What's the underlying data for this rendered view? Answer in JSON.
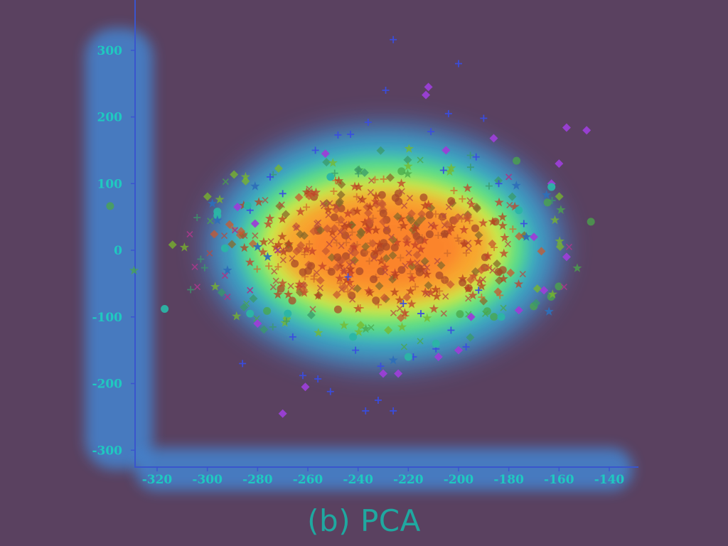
{
  "chart_data": {
    "type": "scatter",
    "title": "",
    "caption": "(b) PCA",
    "xlabel": "",
    "ylabel": "",
    "xlim": [
      -325,
      -135
    ],
    "ylim": [
      -320,
      330
    ],
    "x_ticks": [
      -320,
      -300,
      -280,
      -260,
      -240,
      -220,
      -200,
      -180,
      -160,
      -140
    ],
    "y_ticks": [
      -300,
      -200,
      -100,
      0,
      100,
      200,
      300
    ],
    "grid": false,
    "overlay": "attention heatmap (jet colormap) over a dense central cluster",
    "series": [
      {
        "marker": "plus",
        "color": "#3a4de0",
        "x": [
          -226,
          -200,
          -229,
          -211,
          -204,
          -190,
          -248,
          -243,
          -257,
          -236,
          -193,
          -184,
          -286,
          -256,
          -262,
          -251,
          -237,
          -226,
          -232,
          -231,
          -218,
          -209,
          -203,
          -197,
          -266,
          -241,
          -215,
          -222,
          -192,
          -174,
          -270,
          -275,
          -283,
          -244,
          -206
        ],
        "y": [
          316,
          280,
          240,
          178,
          205,
          198,
          173,
          174,
          150,
          192,
          140,
          100,
          -170,
          -193,
          -188,
          -212,
          -241,
          -241,
          -225,
          -174,
          -160,
          -148,
          -120,
          -145,
          -130,
          -150,
          -95,
          -80,
          -60,
          40,
          85,
          110,
          60,
          -40,
          120
        ]
      },
      {
        "marker": "diamond",
        "color": "#9b3fd6",
        "x": [
          -212,
          -213,
          -157,
          -149,
          -160,
          -163,
          -157,
          -166,
          -280,
          -270,
          -261,
          -230,
          -224,
          -208,
          -200,
          -195,
          -176,
          -288,
          -281,
          -253,
          -186,
          -205,
          -170
        ],
        "y": [
          245,
          233,
          184,
          180,
          130,
          100,
          -10,
          -60,
          -110,
          -245,
          -205,
          -185,
          -185,
          -160,
          -150,
          -100,
          -90,
          65,
          40,
          145,
          168,
          150,
          20
        ]
      },
      {
        "marker": "cross",
        "color": "#a43a8a",
        "x": [
          -307,
          -305,
          -304,
          -292,
          -293,
          -289,
          -156,
          -158,
          -272,
          -283,
          -180
        ],
        "y": [
          24,
          -25,
          -55,
          -70,
          -38,
          30,
          5,
          -55,
          0,
          -60,
          110
        ]
      },
      {
        "marker": "circle",
        "color": "#2bb5a5",
        "x": [
          -296,
          -296,
          -293,
          -283,
          -317,
          -284,
          -163,
          -176,
          -183,
          -220,
          -209,
          -242,
          -268,
          -251
        ],
        "y": [
          58,
          52,
          3,
          -95,
          -88,
          67,
          95,
          60,
          -100,
          -160,
          -140,
          -130,
          -95,
          110
        ]
      },
      {
        "marker": "star",
        "color": "#2e6fb8",
        "x": [
          -298,
          -281,
          -292,
          -280,
          -165,
          -177,
          -164,
          -226,
          -296,
          -276,
          -173
        ],
        "y": [
          70,
          96,
          -30,
          5,
          83,
          97,
          -92,
          -165,
          45,
          -10,
          20
        ]
      },
      {
        "marker": "cluster",
        "color": "#c7522a",
        "x": [],
        "y": []
      }
    ],
    "cluster": {
      "center": [
        -231,
        5
      ],
      "spread": [
        34,
        60
      ],
      "count": 520
    }
  }
}
